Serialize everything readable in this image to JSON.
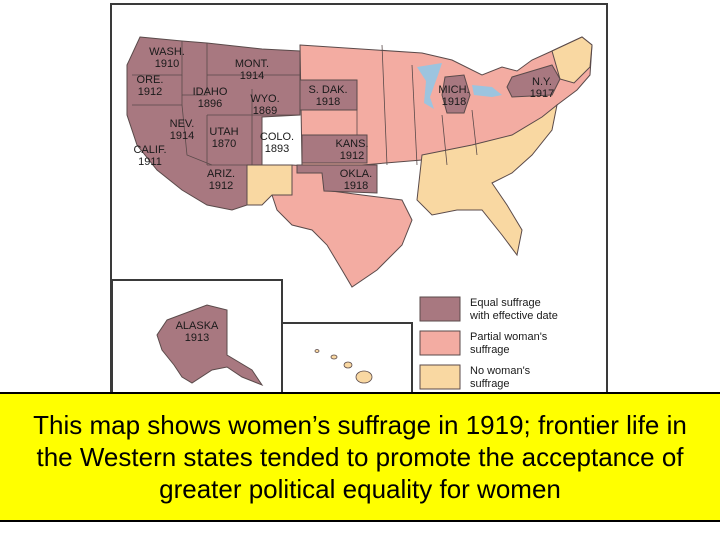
{
  "colors": {
    "equal": "#a87880",
    "partial": "#f3aca2",
    "none": "#f9d8a2",
    "border": "#5a4a4a",
    "water": "#9cc4df",
    "caption_bg": "#ffff00"
  },
  "legend": [
    {
      "category": "equal",
      "line1": "Equal suffrage",
      "line2": "with effective date"
    },
    {
      "category": "partial",
      "line1": "Partial woman's",
      "line2": "suffrage"
    },
    {
      "category": "none",
      "line1": "No woman's",
      "line2": "suffrage"
    }
  ],
  "states": [
    {
      "name": "WASH.",
      "year": "1910",
      "category": "equal"
    },
    {
      "name": "ORE.",
      "year": "1912",
      "category": "equal"
    },
    {
      "name": "CALIF.",
      "year": "1911",
      "category": "equal"
    },
    {
      "name": "IDAHO",
      "year": "1896",
      "category": "equal"
    },
    {
      "name": "NEV.",
      "year": "1914",
      "category": "equal"
    },
    {
      "name": "MONT.",
      "year": "1914",
      "category": "equal"
    },
    {
      "name": "WYO.",
      "year": "1869",
      "category": "equal"
    },
    {
      "name": "UTAH",
      "year": "1870",
      "category": "equal"
    },
    {
      "name": "COLO.",
      "year": "1893",
      "category": "equal"
    },
    {
      "name": "ARIZ.",
      "year": "1912",
      "category": "equal"
    },
    {
      "name": "S. DAK.",
      "year": "1918",
      "category": "equal"
    },
    {
      "name": "KANS.",
      "year": "1912",
      "category": "equal"
    },
    {
      "name": "OKLA.",
      "year": "1918",
      "category": "equal"
    },
    {
      "name": "MICH.",
      "year": "1918",
      "category": "equal"
    },
    {
      "name": "N.Y.",
      "year": "1917",
      "category": "equal"
    },
    {
      "name": "ALASKA",
      "year": "1913",
      "category": "equal"
    }
  ],
  "caption": "This map shows women’s suffrage in 1919; frontier life in the Western states tended to promote the acceptance of greater political equality for women"
}
